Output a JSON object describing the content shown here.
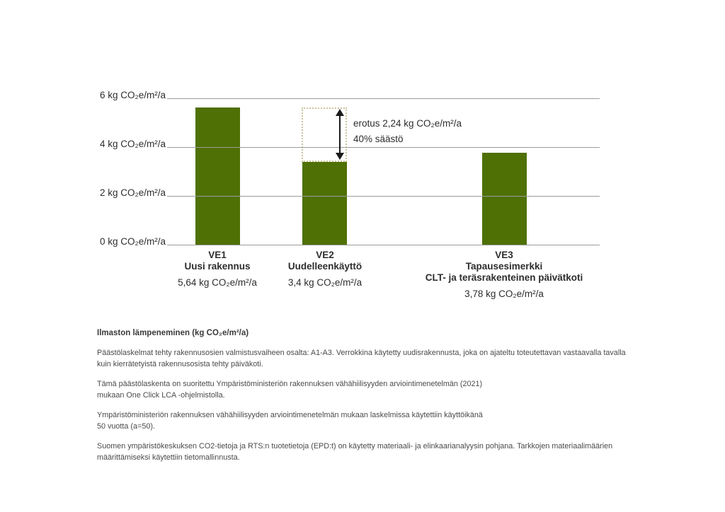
{
  "chart_data": {
    "type": "bar",
    "title": "",
    "unit": "kg CO₂e/m²/a",
    "ylim": [
      0,
      6
    ],
    "grid": true,
    "legend": null,
    "y_ticks": [
      {
        "value": 6,
        "label": "6 kg CO₂e/m²/a"
      },
      {
        "value": 4,
        "label": "4 kg CO₂e/m²/a"
      },
      {
        "value": 2,
        "label": "2 kg CO₂e/m²/a"
      },
      {
        "value": 0,
        "label": "0 kg CO₂e/m²/a"
      }
    ],
    "bars": [
      {
        "code": "VE1",
        "name": "Uusi rakennus",
        "value": 5.64,
        "value_label": "5,64 kg CO₂e/m²/a"
      },
      {
        "code": "VE2",
        "name": "Uudelleenkäyttö",
        "value": 3.4,
        "value_label": "3,4 kg CO₂e/m²/a"
      },
      {
        "code": "VE3",
        "name": "Tapausesimerkki\nCLT- ja teräsrakenteinen päivätkoti",
        "value": 3.78,
        "value_label": "3,78 kg CO₂e/m²/a"
      }
    ],
    "difference_annotation": {
      "between": [
        "VE1",
        "VE2"
      ],
      "difference_value": 2.24,
      "savings_percent": 40,
      "text": "erotus 2,24 kg CO₂e/m²/a\n40% säästö"
    },
    "colors": {
      "bar": "#4e7004",
      "gridline": "#9b9b9b",
      "diff_box_border": "#c9c49c",
      "arrow": "#1a1a1a",
      "text": "#2d2d2d"
    }
  },
  "footer": {
    "heading": "Ilmaston lämpeneminen (kg CO₂e/m²/a)",
    "paragraphs": [
      "Päästölaskelmat tehty rakennusosien valmistusvaiheen osalta: A1-A3. Verrokkina käytetty uudisrakennusta, joka on ajateltu toteutettavan vastaavalla tavalla\nkuin kierrätetyistä rakennusosista tehty päiväkoti.",
      "Tämä päästölaskenta on suoritettu Ympäristöministeriön rakennuksen vähähiilisyyden arviointimenetelmän (2021)\nmukaan One Click LCA -ohjelmistolla.",
      "Ympäristöministeriön rakennuksen vähähiilisyyden arviointimenetelmän mukaan laskelmissa käytettiin käyttöikänä\n50 vuotta (a=50).",
      "Suomen ympäristökeskuksen CO2-tietoja ja RTS:n tuotetietoja (EPD:t) on käytetty materiaali- ja elinkaarianalyysin pohjana.  Tarkkojen materiaalimäärien\nmäärittämiseksi käytettiin tietomallinnusta."
    ]
  }
}
